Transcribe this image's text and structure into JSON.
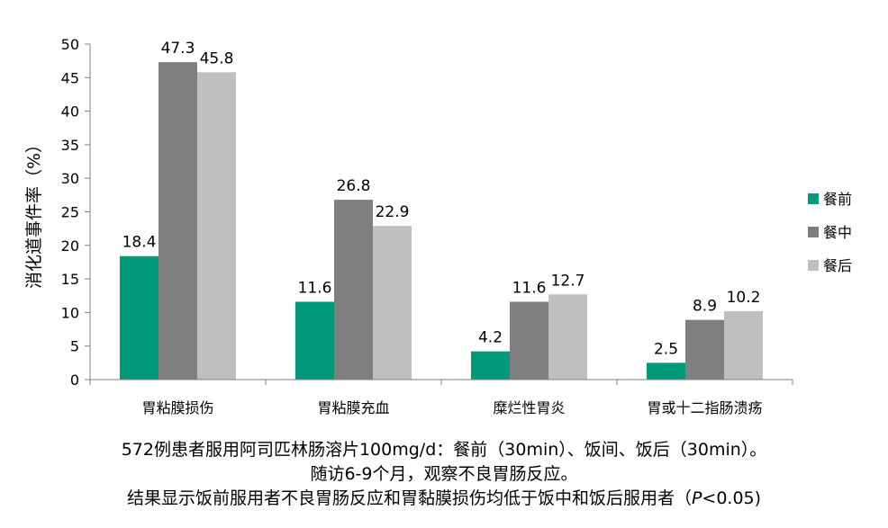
{
  "chart_data": {
    "type": "bar",
    "ylabel": "消化道事件率（%）",
    "ylim": [
      0,
      50
    ],
    "yticks": [
      0,
      5,
      10,
      15,
      20,
      25,
      30,
      35,
      40,
      45,
      50
    ],
    "categories": [
      "胃粘膜损伤",
      "胃粘膜充血",
      "糜烂性胃炎",
      "胃或十二指肠溃疡"
    ],
    "series": [
      {
        "name": "餐前",
        "color": "#00997a",
        "values": [
          18.4,
          11.6,
          4.2,
          2.5
        ]
      },
      {
        "name": "餐中",
        "color": "#7f7f7f",
        "values": [
          47.3,
          26.8,
          11.6,
          8.9
        ]
      },
      {
        "name": "餐后",
        "color": "#bfbfbf",
        "values": [
          45.8,
          22.9,
          12.7,
          10.2
        ]
      }
    ],
    "grid": false,
    "legend_position": "right"
  },
  "caption": {
    "line1": "572例患者服用阿司匹林肠溶片100mg/d：餐前（30min）、饭间、饭后（30min）。",
    "line2": "随访6-9个月，观察不良胃肠反应。",
    "line3_prefix": "结果显示饭前服用者不良胃肠反应和胃黏膜损伤均低于饭中和饭后服用者（",
    "line3_p": "P",
    "line3_suffix": "<0.05)"
  }
}
